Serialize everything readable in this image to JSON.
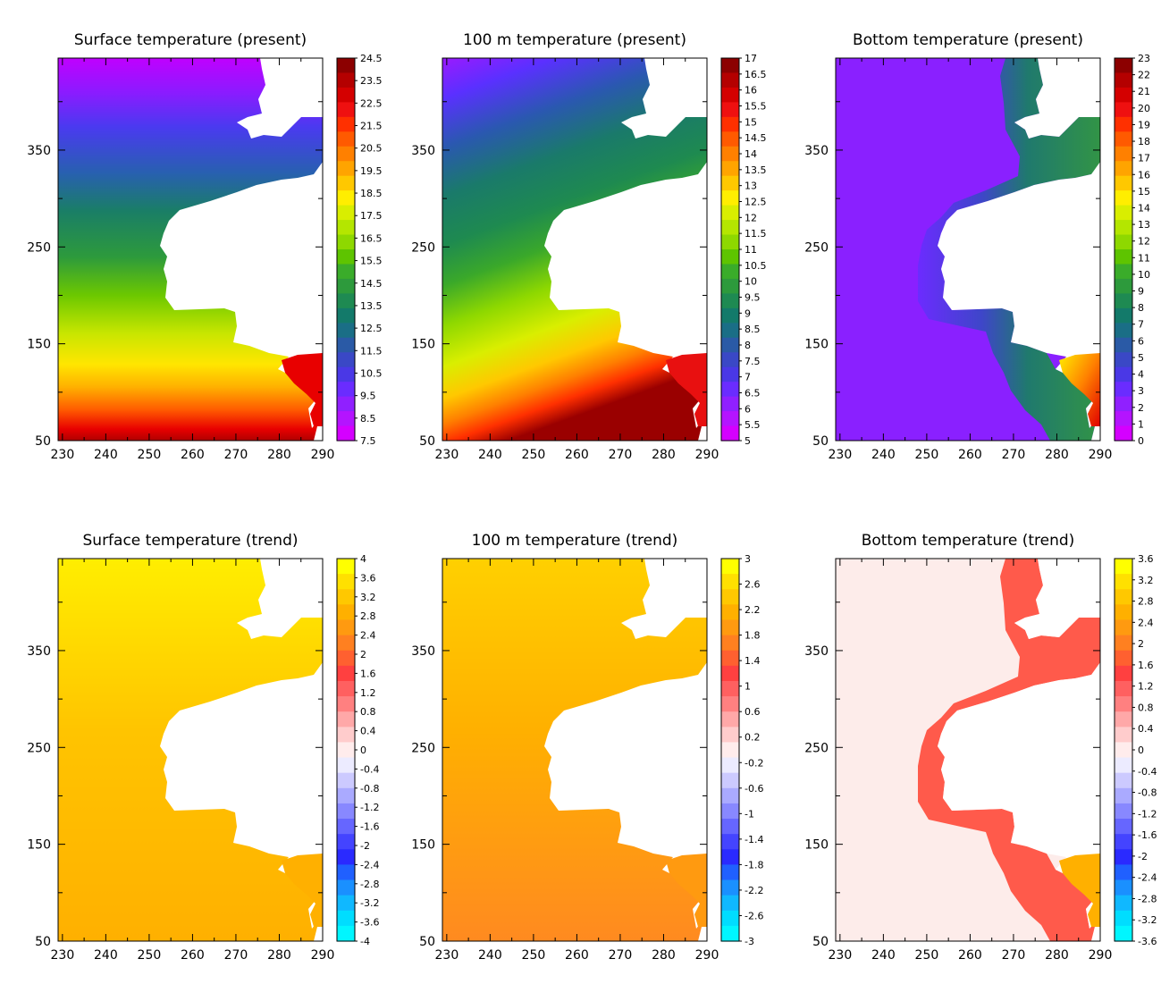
{
  "chart_data": [
    {
      "type": "heatmap",
      "title": "Surface temperature (present)",
      "xlabel": "",
      "ylabel": "",
      "x_ticks": [
        "230",
        "240",
        "250",
        "260",
        "270",
        "280",
        "290"
      ],
      "y_ticks": [
        "50",
        "150",
        "250",
        "350"
      ],
      "xlim": [
        229,
        290
      ],
      "ylim": [
        50,
        445
      ],
      "colorbar": {
        "labels": [
          "24.5",
          "23.5",
          "22.5",
          "21.5",
          "20.5",
          "19.5",
          "18.5",
          "17.5",
          "16.5",
          "15.5",
          "14.5",
          "13.5",
          "12.5",
          "11.5",
          "10.5",
          "9.5",
          "8.5",
          "7.5"
        ],
        "colors": [
          "#8c0000",
          "#b40000",
          "#d40000",
          "#ef1010",
          "#ff3000",
          "#ff5a00",
          "#ff8000",
          "#ffa400",
          "#ffc800",
          "#ffee00",
          "#d9ee00",
          "#b4e600",
          "#8ed800",
          "#5ec400",
          "#3aac2a",
          "#2d9a3c",
          "#1e8a52",
          "#137a6a",
          "#1a6e86",
          "#2a5aa6",
          "#3a48c6",
          "#4a38e6",
          "#6a2cff",
          "#9020ff",
          "#b414ff",
          "#d400ff"
        ]
      }
    },
    {
      "type": "heatmap",
      "title": "100 m temperature (present)",
      "xlabel": "",
      "ylabel": "",
      "x_ticks": [
        "230",
        "240",
        "250",
        "260",
        "270",
        "280",
        "290"
      ],
      "y_ticks": [
        "50",
        "150",
        "250",
        "350"
      ],
      "xlim": [
        229,
        290
      ],
      "ylim": [
        50,
        445
      ],
      "colorbar": {
        "labels": [
          "17",
          "16.5",
          "16",
          "15.5",
          "15",
          "14.5",
          "14",
          "13.5",
          "13",
          "12.5",
          "12",
          "11.5",
          "11",
          "10.5",
          "10",
          "9.5",
          "9",
          "8.5",
          "8",
          "7.5",
          "7",
          "6.5",
          "6",
          "5.5",
          "5"
        ],
        "colors": [
          "#8c0000",
          "#b40000",
          "#d40000",
          "#ef1010",
          "#ff3000",
          "#ff5a00",
          "#ff8000",
          "#ffa400",
          "#ffc800",
          "#ffee00",
          "#d9ee00",
          "#b4e600",
          "#8ed800",
          "#5ec400",
          "#3aac2a",
          "#2d9a3c",
          "#1e8a52",
          "#137a6a",
          "#1a6e86",
          "#2a5aa6",
          "#3a48c6",
          "#4a38e6",
          "#6a2cff",
          "#9020ff",
          "#b414ff",
          "#d400ff"
        ]
      }
    },
    {
      "type": "heatmap",
      "title": "Bottom temperature (present)",
      "xlabel": "",
      "ylabel": "",
      "x_ticks": [
        "230",
        "240",
        "250",
        "260",
        "270",
        "280",
        "290"
      ],
      "y_ticks": [
        "50",
        "150",
        "250",
        "350"
      ],
      "xlim": [
        229,
        290
      ],
      "ylim": [
        50,
        445
      ],
      "colorbar": {
        "labels": [
          "23",
          "22",
          "21",
          "20",
          "19",
          "18",
          "17",
          "16",
          "15",
          "14",
          "13",
          "12",
          "11",
          "10",
          "9",
          "8",
          "7",
          "6",
          "5",
          "4",
          "3",
          "2",
          "1",
          "0"
        ],
        "colors": [
          "#8c0000",
          "#b40000",
          "#d40000",
          "#ef1010",
          "#ff3000",
          "#ff5a00",
          "#ff8000",
          "#ffa400",
          "#ffc800",
          "#ffee00",
          "#d9ee00",
          "#b4e600",
          "#8ed800",
          "#5ec400",
          "#3aac2a",
          "#2d9a3c",
          "#1e8a52",
          "#137a6a",
          "#1a6e86",
          "#2a5aa6",
          "#3a48c6",
          "#4a38e6",
          "#6a2cff",
          "#9020ff",
          "#b414ff",
          "#d400ff"
        ]
      }
    },
    {
      "type": "heatmap",
      "title": "Surface temperature (trend)",
      "xlabel": "",
      "ylabel": "",
      "x_ticks": [
        "230",
        "240",
        "250",
        "260",
        "270",
        "280",
        "290"
      ],
      "y_ticks": [
        "50",
        "150",
        "250",
        "350"
      ],
      "xlim": [
        229,
        290
      ],
      "ylim": [
        50,
        445
      ],
      "colorbar": {
        "labels": [
          "4",
          "3.6",
          "3.2",
          "2.8",
          "2.4",
          "2",
          "1.6",
          "1.2",
          "0.8",
          "0.4",
          "0",
          "-0.4",
          "-0.8",
          "-1.2",
          "-1.6",
          "-2",
          "-2.4",
          "-2.8",
          "-3.2",
          "-3.6",
          "-4"
        ],
        "colors": [
          "#ffff00",
          "#ffe000",
          "#ffc800",
          "#ffb000",
          "#ff9a10",
          "#ff8020",
          "#ff6030",
          "#ff4040",
          "#ff6060",
          "#ff8080",
          "#ffa8a8",
          "#ffcccc",
          "#ffecec",
          "#ecebff",
          "#cccaff",
          "#aaaaff",
          "#8888ff",
          "#6666ff",
          "#4444ff",
          "#2a2aff",
          "#2060ff",
          "#1a90ff",
          "#10b8ff",
          "#00ddff",
          "#00f6ff"
        ]
      }
    },
    {
      "type": "heatmap",
      "title": "100 m temperature (trend)",
      "xlabel": "",
      "ylabel": "",
      "x_ticks": [
        "230",
        "240",
        "250",
        "260",
        "270",
        "280",
        "290"
      ],
      "y_ticks": [
        "50",
        "150",
        "250",
        "350"
      ],
      "xlim": [
        229,
        290
      ],
      "ylim": [
        50,
        445
      ],
      "colorbar": {
        "labels": [
          "3",
          "2.6",
          "2.2",
          "1.8",
          "1.4",
          "1",
          "0.6",
          "0.2",
          "-0.2",
          "-0.6",
          "-1",
          "-1.4",
          "-1.8",
          "-2.2",
          "-2.6",
          "-3"
        ],
        "colors": [
          "#ffff00",
          "#ffe000",
          "#ffc800",
          "#ffb000",
          "#ff9a10",
          "#ff8020",
          "#ff6030",
          "#ff4040",
          "#ff6060",
          "#ff8080",
          "#ffa8a8",
          "#ffcccc",
          "#ffecec",
          "#ecebff",
          "#cccaff",
          "#aaaaff",
          "#8888ff",
          "#6666ff",
          "#4444ff",
          "#2a2aff",
          "#2060ff",
          "#1a90ff",
          "#10b8ff",
          "#00ddff",
          "#00f6ff"
        ]
      }
    },
    {
      "type": "heatmap",
      "title": "Bottom temperature (trend)",
      "xlabel": "",
      "ylabel": "",
      "x_ticks": [
        "230",
        "240",
        "250",
        "260",
        "270",
        "280",
        "290"
      ],
      "y_ticks": [
        "50",
        "150",
        "250",
        "350"
      ],
      "xlim": [
        229,
        290
      ],
      "ylim": [
        50,
        445
      ],
      "colorbar": {
        "labels": [
          "3.6",
          "3.2",
          "2.8",
          "2.4",
          "2",
          "1.6",
          "1.2",
          "0.8",
          "0.4",
          "0",
          "-0.4",
          "-0.8",
          "-1.2",
          "-1.6",
          "-2",
          "-2.4",
          "-2.8",
          "-3.2",
          "-3.6"
        ],
        "colors": [
          "#ffff00",
          "#ffe000",
          "#ffc800",
          "#ffb000",
          "#ff9a10",
          "#ff8020",
          "#ff6030",
          "#ff4040",
          "#ff6060",
          "#ff8080",
          "#ffa8a8",
          "#ffcccc",
          "#ffecec",
          "#ecebff",
          "#cccaff",
          "#aaaaff",
          "#8888ff",
          "#6666ff",
          "#4444ff",
          "#2a2aff",
          "#2060ff",
          "#1a90ff",
          "#10b8ff",
          "#00ddff",
          "#00f6ff"
        ]
      }
    }
  ]
}
